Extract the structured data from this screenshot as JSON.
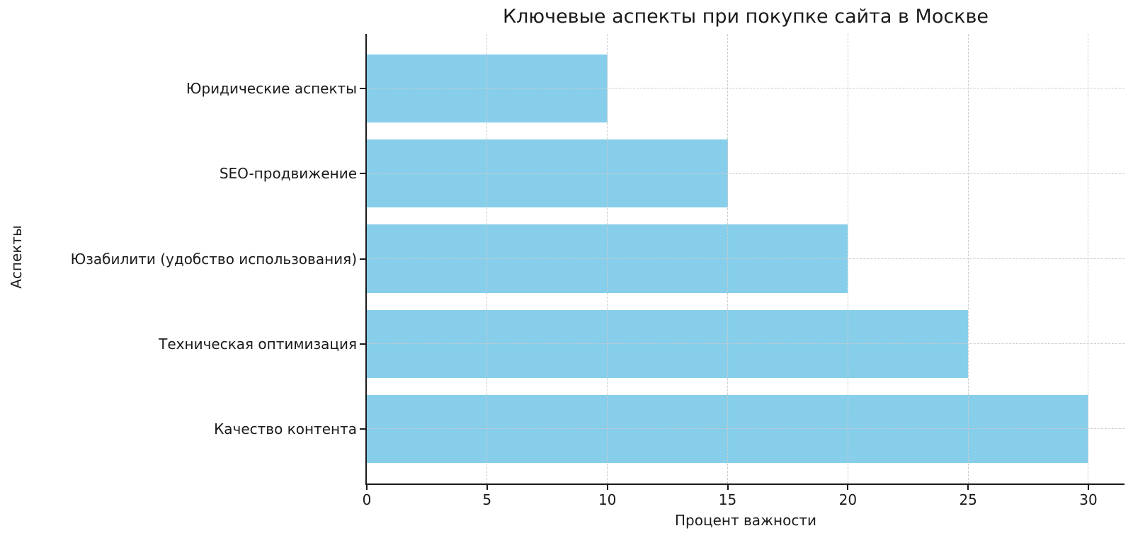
{
  "chart_data": {
    "type": "bar",
    "orientation": "horizontal",
    "title": "Ключевые аспекты при покупке сайта в Москве",
    "xlabel": "Процент важности",
    "ylabel": "Аспекты",
    "categories": [
      "Юридические аспекты",
      "SEO-продвижение",
      "Юзабилити (удобство использования)",
      "Техническая оптимизация",
      "Качество контента"
    ],
    "values": [
      10,
      15,
      20,
      25,
      30
    ],
    "x_ticks": [
      0,
      5,
      10,
      15,
      20,
      25,
      30
    ],
    "xlim": [
      0,
      31.5
    ],
    "bar_height_fraction": 0.8,
    "bar_color": "#87CEEB",
    "grid": true,
    "grid_style": "dashed",
    "grid_color": "#cbcbcb",
    "axis_color": "#1a1a1a",
    "background": "#ffffff",
    "legend": null
  }
}
